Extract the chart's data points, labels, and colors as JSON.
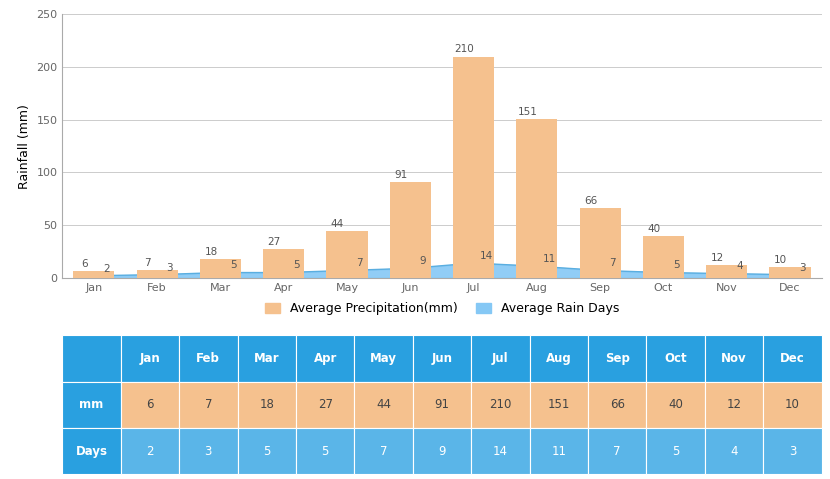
{
  "months": [
    "Jan",
    "Feb",
    "Mar",
    "Apr",
    "May",
    "Jun",
    "Jul",
    "Aug",
    "Sep",
    "Oct",
    "Nov",
    "Dec"
  ],
  "precipitation_mm": [
    6,
    7,
    18,
    27,
    44,
    91,
    210,
    151,
    66,
    40,
    12,
    10
  ],
  "rain_days": [
    2,
    3,
    5,
    5,
    7,
    9,
    14,
    11,
    7,
    5,
    4,
    3
  ],
  "bar_color": "#F5C18E",
  "area_color": "#85C8F5",
  "area_line_color": "#5AAEE0",
  "ylim": [
    0,
    250
  ],
  "yticks": [
    0,
    50,
    100,
    150,
    200,
    250
  ],
  "ylabel": "Rainfall (mm)",
  "legend_labels": [
    "Average Precipitation(mm)",
    "Average Rain Days"
  ],
  "table_header_color": "#29A0E0",
  "table_mm_row_color": "#F5C18E",
  "table_days_row_color": "#5AB5E8",
  "table_text_color_header": "#ffffff",
  "table_text_color_mm": "#444444",
  "table_text_color_days": "#ffffff",
  "background_color": "#ffffff",
  "grid_color": "#cccccc",
  "axis_label_fontsize": 9,
  "tick_fontsize": 8,
  "bar_label_fontsize": 7.5,
  "legend_fontsize": 9,
  "table_fontsize": 8.5
}
